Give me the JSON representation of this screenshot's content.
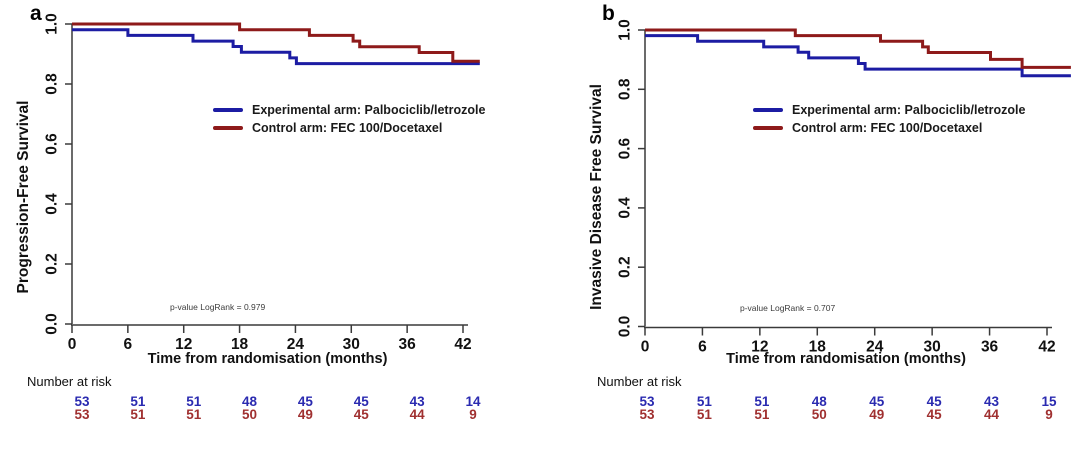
{
  "chart_data": [
    {
      "type": "line",
      "subtype": "kaplan-meier-step",
      "panel_label": "a",
      "xlabel": "Time from randomisation (months)",
      "ylabel": "Progression-Free Survival",
      "xlim": [
        0,
        42
      ],
      "ylim": [
        0.0,
        1.0
      ],
      "x_ticks": [
        0,
        6,
        12,
        18,
        24,
        30,
        36,
        42
      ],
      "y_ticks": [
        1.0,
        0.8,
        0.6,
        0.4,
        0.2,
        0.0
      ],
      "grid": false,
      "legend_position": "inside center-left, upper third",
      "annotation": "p-value LogRank = 0.979",
      "series": [
        {
          "name": "Experimental arm: Palbociclib/letrozole",
          "color": "#1c1ca3",
          "steps": [
            [
              0,
              0.981
            ],
            [
              6,
              0.962
            ],
            [
              13,
              0.943
            ],
            [
              17.3,
              0.925
            ],
            [
              18.2,
              0.906
            ],
            [
              23.4,
              0.887
            ],
            [
              24.1,
              0.868
            ]
          ],
          "end_time": 43.8
        },
        {
          "name": "Control arm: FEC 100/Docetaxel",
          "color": "#8e1a1a",
          "steps": [
            [
              0,
              1.0
            ],
            [
              18,
              0.981
            ],
            [
              25.5,
              0.962
            ],
            [
              30.2,
              0.943
            ],
            [
              30.9,
              0.924
            ],
            [
              37.3,
              0.905
            ],
            [
              40.9,
              0.876
            ]
          ],
          "end_time": 43.8
        }
      ],
      "number_at_risk": {
        "label": "Number at risk",
        "times": [
          0,
          6,
          12,
          18,
          24,
          30,
          36,
          42
        ],
        "rows": [
          {
            "name": "Experimental arm",
            "color": "#2a2ab0",
            "values": [
              53,
              51,
              51,
              48,
              45,
              45,
              43,
              14
            ]
          },
          {
            "name": "Control arm",
            "color": "#a03030",
            "values": [
              53,
              51,
              51,
              50,
              49,
              45,
              44,
              9
            ]
          }
        ]
      }
    },
    {
      "type": "line",
      "subtype": "kaplan-meier-step",
      "panel_label": "b",
      "xlabel": "Time from randomisation (months)",
      "ylabel": "Invasive Disease Free Survival",
      "xlim": [
        0,
        42
      ],
      "ylim": [
        0.0,
        1.0
      ],
      "x_ticks": [
        0,
        6,
        12,
        18,
        24,
        30,
        36,
        42
      ],
      "y_ticks": [
        1.0,
        0.8,
        0.6,
        0.4,
        0.2,
        0.0
      ],
      "grid": false,
      "legend_position": "inside center-left, upper third",
      "annotation": "p-value LogRank = 0.707",
      "series": [
        {
          "name": "Experimental arm: Palbociclib/letrozole",
          "color": "#1c1ca3",
          "steps": [
            [
              0,
              0.981
            ],
            [
              5.5,
              0.962
            ],
            [
              12.4,
              0.943
            ],
            [
              16.0,
              0.925
            ],
            [
              17.1,
              0.906
            ],
            [
              22.3,
              0.887
            ],
            [
              23.0,
              0.868
            ],
            [
              39.4,
              0.846
            ]
          ],
          "end_time": 44.5
        },
        {
          "name": "Control arm: FEC 100/Docetaxel",
          "color": "#8e1a1a",
          "steps": [
            [
              0,
              1.0
            ],
            [
              15.7,
              0.981
            ],
            [
              24.6,
              0.962
            ],
            [
              29.0,
              0.943
            ],
            [
              29.6,
              0.924
            ],
            [
              36.1,
              0.901
            ],
            [
              39.4,
              0.874
            ]
          ],
          "end_time": 44.5
        }
      ],
      "number_at_risk": {
        "label": "Number at risk",
        "times": [
          0,
          6,
          12,
          18,
          24,
          30,
          36,
          42
        ],
        "rows": [
          {
            "name": "Experimental arm",
            "color": "#2a2ab0",
            "values": [
              53,
              51,
              51,
              48,
              45,
              45,
              43,
              15
            ]
          },
          {
            "name": "Control arm",
            "color": "#a03030",
            "values": [
              53,
              51,
              51,
              50,
              49,
              45,
              44,
              9
            ]
          }
        ]
      }
    }
  ]
}
